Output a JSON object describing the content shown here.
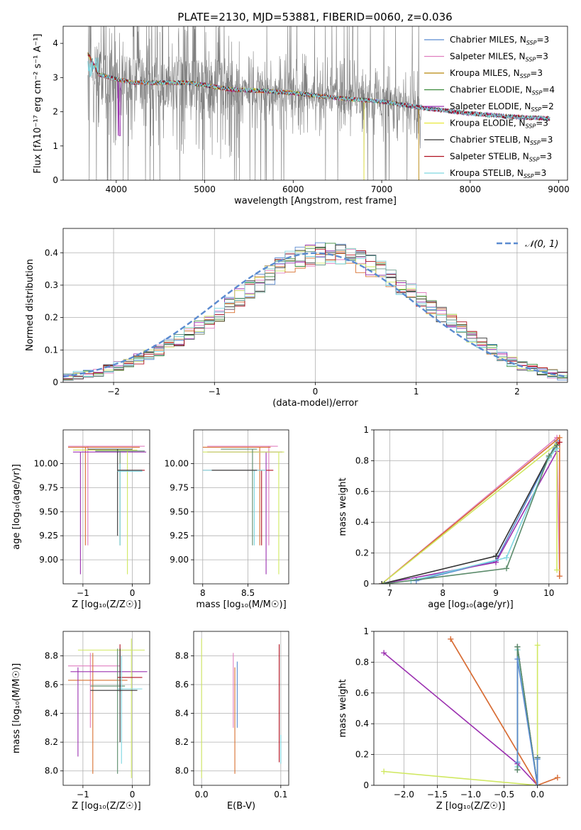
{
  "colors": {
    "Chabrier MILES": "#5b8bd0",
    "Salpeter MILES": "#e07fc0",
    "Kroupa MILES": "#b8860b",
    "Chabrier ELODIE": "#3a8a3a",
    "Salpeter ELODIE": "#9b30b0",
    "Kroupa ELODIE": "#e8e83a",
    "Chabrier STELIB": "#333333",
    "Salpeter STELIB": "#b01020",
    "Kroupa STELIB": "#7ed6e0",
    "data": "#808080",
    "hist_palette": [
      "#5b8bd0",
      "#e07fc0",
      "#d87030",
      "#3a8a3a",
      "#9b30b0",
      "#d0e860",
      "#333333",
      "#b01020",
      "#7ed6e0",
      "#6a9a8a"
    ],
    "normal": "#5b8bd0"
  },
  "chart_data": [
    {
      "id": "spectrum",
      "type": "line",
      "title": "PLATE=2130, MJD=53881, FIBERID=0060, z=0.036",
      "xlabel": "wavelength [Angstrom, rest frame]",
      "ylabel": "Flux [fλ10⁻¹⁷ erg cm⁻² s⁻¹ A⁻¹]",
      "xlim": [
        3400,
        9100
      ],
      "ylim": [
        0,
        4.5
      ],
      "xticks": [
        4000,
        5000,
        6000,
        7000,
        8000,
        9000
      ],
      "yticks": [
        0,
        1,
        2,
        3,
        4
      ],
      "grid": false,
      "legend_position": "top-right",
      "legend": [
        {
          "model": "Chabrier MILES",
          "label": "Chabrier MILES, N",
          "sub": "SSP",
          "tail": "=3"
        },
        {
          "model": "Salpeter MILES",
          "label": "Salpeter MILES, N",
          "sub": "SSP",
          "tail": "=3"
        },
        {
          "model": "Kroupa MILES",
          "label": "Kroupa MILES, N",
          "sub": "SSP",
          "tail": "=3"
        },
        {
          "model": "Chabrier ELODIE",
          "label": "Chabrier ELODIE, N",
          "sub": "SSP",
          "tail": "=4"
        },
        {
          "model": "Salpeter ELODIE",
          "label": "Salpeter ELODIE, N",
          "sub": "SSP",
          "tail": "=2"
        },
        {
          "model": "Kroupa ELODIE",
          "label": "Kroupa ELODIE, N",
          "sub": "SSP",
          "tail": "=3"
        },
        {
          "model": "Chabrier STELIB",
          "label": "Chabrier STELIB, N",
          "sub": "SSP",
          "tail": "=3"
        },
        {
          "model": "Salpeter STELIB",
          "label": "Salpeter STELIB, N",
          "sub": "SSP",
          "tail": "=3"
        },
        {
          "model": "Kroupa STELIB",
          "label": "Kroupa STELIB, N",
          "sub": "SSP",
          "tail": "=3"
        }
      ],
      "continuum": {
        "x": [
          3700,
          3800,
          4000,
          4200,
          4500,
          4800,
          5000,
          5300,
          5600,
          6000,
          6500,
          7000,
          7500,
          8000,
          8500,
          8900
        ],
        "y": [
          3.6,
          3.1,
          2.95,
          2.85,
          2.85,
          2.85,
          2.78,
          2.65,
          2.62,
          2.55,
          2.4,
          2.3,
          2.1,
          1.95,
          1.85,
          1.8
        ]
      }
    },
    {
      "id": "residuals",
      "type": "histogram",
      "xlabel": "(data-model)/error",
      "ylabel": "Normed distribution",
      "xlim": [
        -2.5,
        2.5
      ],
      "ylim": [
        0,
        0.475
      ],
      "xticks": [
        -2,
        -1,
        0,
        1,
        2
      ],
      "yticks": [
        0.0,
        0.1,
        0.2,
        0.3,
        0.4
      ],
      "grid": true,
      "legend_position": "top-right",
      "legend_label": "𝒩(0, 1)",
      "bin_width": 0.1,
      "bin_start": -2.5,
      "base_values": [
        0.017,
        0.022,
        0.025,
        0.031,
        0.042,
        0.05,
        0.06,
        0.072,
        0.085,
        0.1,
        0.115,
        0.13,
        0.15,
        0.168,
        0.19,
        0.212,
        0.24,
        0.262,
        0.285,
        0.305,
        0.33,
        0.355,
        0.372,
        0.385,
        0.392,
        0.398,
        0.396,
        0.392,
        0.385,
        0.372,
        0.36,
        0.342,
        0.322,
        0.3,
        0.28,
        0.255,
        0.232,
        0.21,
        0.19,
        0.165,
        0.143,
        0.122,
        0.1,
        0.082,
        0.064,
        0.052,
        0.042,
        0.033,
        0.026,
        0.02
      ]
    },
    {
      "id": "z-age",
      "type": "errorbar",
      "xlabel": "Z [log₁₀(Z/Z☉)]",
      "ylabel": "age  [log₁₀(age/yr)]",
      "xlim": [
        -1.4,
        0.35
      ],
      "ylim": [
        8.75,
        10.35
      ],
      "xticks": [
        -1,
        0
      ],
      "yticks": [
        9.0,
        9.25,
        9.5,
        9.75,
        10.0
      ],
      "ytick_labels": [
        "9.00",
        "9.25",
        "9.50",
        "9.75",
        "10.00"
      ],
      "grid": true
    },
    {
      "id": "mass-age",
      "type": "errorbar",
      "xlabel": "mass [log₁₀(M/M☉)]",
      "xlim": [
        7.9,
        8.95
      ],
      "ylim": [
        8.75,
        10.35
      ],
      "xticks": [
        8.0,
        8.5
      ],
      "yticks": [
        9.0,
        9.25,
        9.5,
        9.75,
        10.0
      ],
      "ytick_labels": [
        "9.00",
        "9.25",
        "9.50",
        "9.75",
        "10.00"
      ],
      "grid": true
    },
    {
      "id": "age-weight",
      "type": "line",
      "xlabel": "age  [log₁₀(age/yr)]",
      "ylabel": "mass weight",
      "xlim": [
        6.7,
        10.35
      ],
      "ylim": [
        0,
        1
      ],
      "xticks": [
        7,
        8,
        9,
        10
      ],
      "yticks": [
        0.0,
        0.2,
        0.4,
        0.6,
        0.8,
        1.0
      ],
      "grid": true,
      "series": [
        {
          "color": "#5b8bd0",
          "x": [
            7.5,
            9.0,
            10.0,
            10.15
          ],
          "y": [
            0.02,
            0.15,
            0.82,
            0.93
          ]
        },
        {
          "color": "#e07fc0",
          "x": [
            6.85,
            10.15,
            10.2
          ],
          "y": [
            0.0,
            0.95,
            0.05
          ]
        },
        {
          "color": "#d87030",
          "x": [
            6.85,
            10.2,
            10.2
          ],
          "y": [
            0.0,
            0.95,
            0.05
          ]
        },
        {
          "color": "#9b30b0",
          "x": [
            6.85,
            9.0,
            10.15
          ],
          "y": [
            0.0,
            0.14,
            0.86
          ]
        },
        {
          "color": "#d0e860",
          "x": [
            6.85,
            10.15,
            10.15
          ],
          "y": [
            0.0,
            0.91,
            0.09
          ]
        },
        {
          "color": "#333333",
          "x": [
            6.85,
            9.0,
            10.0,
            10.15
          ],
          "y": [
            0.0,
            0.18,
            0.83,
            0.9
          ]
        },
        {
          "color": "#b01020",
          "x": [
            10.15,
            10.2
          ],
          "y": [
            0.9,
            0.92
          ]
        },
        {
          "color": "#7ed6e0",
          "x": [
            7.4,
            9.2,
            10.0,
            10.15
          ],
          "y": [
            0.02,
            0.17,
            0.82,
            0.88
          ]
        },
        {
          "color": "#5a8a6a",
          "x": [
            6.9,
            9.2,
            10.0,
            10.15
          ],
          "y": [
            0.0,
            0.1,
            0.83,
            0.9
          ]
        }
      ]
    },
    {
      "id": "z-mass",
      "type": "errorbar",
      "xlabel": "Z [log₁₀(Z/Z☉)]",
      "ylabel": "mass [log₁₀(M/M☉)]",
      "xlim": [
        -1.4,
        0.35
      ],
      "ylim": [
        7.9,
        8.97
      ],
      "xticks": [
        -1,
        0
      ],
      "yticks": [
        8.0,
        8.2,
        8.4,
        8.6,
        8.8
      ],
      "ytick_labels": [
        "8.0",
        "8.2",
        "8.4",
        "8.6",
        "8.8"
      ],
      "grid": true
    },
    {
      "id": "ebv-mass",
      "type": "errorbar",
      "xlabel": "E(B-V)",
      "xlim": [
        -0.01,
        0.11
      ],
      "ylim": [
        7.9,
        8.97
      ],
      "xticks": [
        0.0,
        0.1
      ],
      "xtick_labels": [
        "0.0",
        "0.1"
      ],
      "yticks": [
        8.0,
        8.2,
        8.4,
        8.6,
        8.8
      ],
      "ytick_labels": [
        "8.0",
        "8.2",
        "8.4",
        "8.6",
        "8.8"
      ],
      "grid": true
    },
    {
      "id": "z-weight",
      "type": "line",
      "xlabel": "Z [log₁₀(Z/Z☉)]",
      "ylabel": "mass weight",
      "xlim": [
        -2.45,
        0.45
      ],
      "ylim": [
        0,
        1
      ],
      "xticks": [
        -2.0,
        -1.5,
        -1.0,
        -0.5,
        0.0
      ],
      "xtick_labels": [
        "−2.0",
        "−1.5",
        "−1.0",
        "−0.5",
        "0.0"
      ],
      "yticks": [
        0.0,
        0.2,
        0.4,
        0.6,
        0.8,
        1.0
      ],
      "grid": true,
      "series": [
        {
          "color": "#9b30b0",
          "x": [
            -2.3,
            -0.3,
            0.0
          ],
          "y": [
            0.86,
            0.14,
            0.0
          ]
        },
        {
          "color": "#e07fc0",
          "x": [
            -1.3,
            0.0,
            0.3
          ],
          "y": [
            0.95,
            0.0,
            0.05
          ]
        },
        {
          "color": "#d87030",
          "x": [
            -1.3,
            0.0,
            0.3
          ],
          "y": [
            0.95,
            0.0,
            0.05
          ]
        },
        {
          "color": "#d0e860",
          "x": [
            -2.3,
            0.0,
            0.0
          ],
          "y": [
            0.09,
            0.0,
            0.91
          ]
        },
        {
          "color": "#333333",
          "x": [
            -0.3,
            -0.3,
            0.0,
            0.0
          ],
          "y": [
            0.1,
            0.9,
            0.0,
            0.18
          ]
        },
        {
          "color": "#7ed6e0",
          "x": [
            -0.3,
            -0.3,
            0.0,
            0.0
          ],
          "y": [
            0.12,
            0.88,
            0.0,
            0.17
          ]
        },
        {
          "color": "#5a8a6a",
          "x": [
            -0.3,
            -0.3,
            0.0,
            0.0
          ],
          "y": [
            0.1,
            0.9,
            0.0,
            0.18
          ]
        },
        {
          "color": "#5b8bd0",
          "x": [
            -0.3,
            -0.3,
            0.0,
            0.0
          ],
          "y": [
            0.15,
            0.82,
            0.0,
            0.17
          ]
        }
      ]
    }
  ]
}
